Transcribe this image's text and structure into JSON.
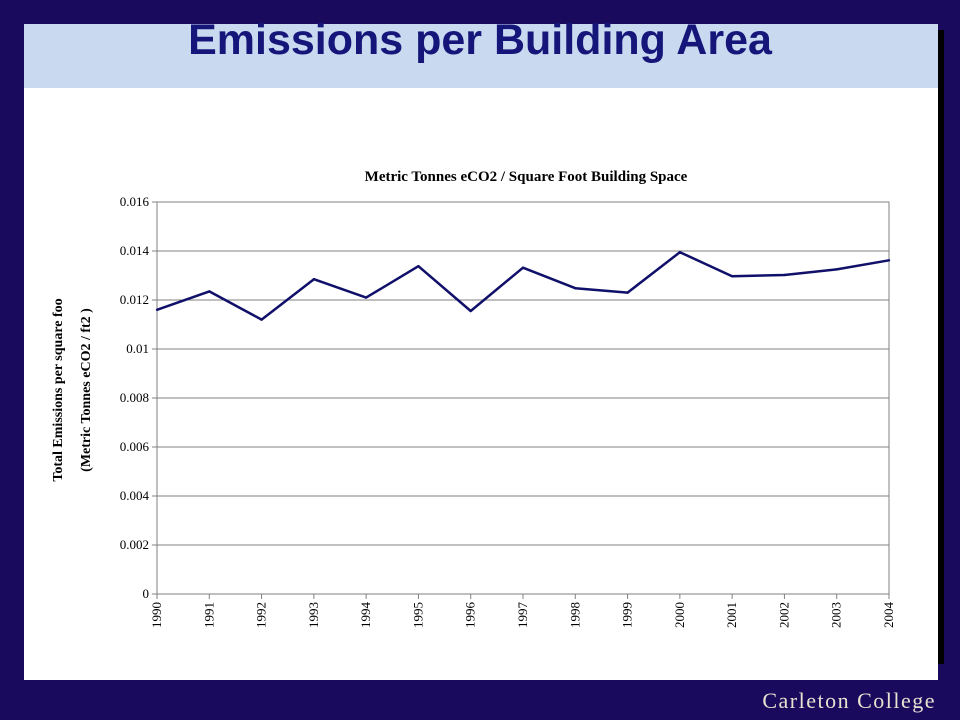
{
  "slide": {
    "title": "Emissions per Building Area",
    "footer": "Carleton College"
  },
  "colors": {
    "background": "#1a0a5e",
    "title_band": "#c9d9f0",
    "title_text": "#16167a",
    "line": "#10106a"
  },
  "chart_data": {
    "type": "line",
    "title": "Metric Tonnes eCO2 / Square Foot Building Space",
    "ylabel_lines": [
      "Total Emissions per square foo",
      "(Metric Tonnes eCO2 / ft2 )"
    ],
    "xlabel": "",
    "ylim": [
      0,
      0.016
    ],
    "yticks": [
      "0",
      "0.002",
      "0.004",
      "0.006",
      "0.008",
      "0.01",
      "0.012",
      "0.014",
      "0.016"
    ],
    "ytick_values": [
      0,
      0.002,
      0.004,
      0.006,
      0.008,
      0.01,
      0.012,
      0.014,
      0.016
    ],
    "grid": true,
    "legend": "none",
    "categories": [
      "1990",
      "1991",
      "1992",
      "1993",
      "1994",
      "1995",
      "1996",
      "1997",
      "1998",
      "1999",
      "2000",
      "2001",
      "2002",
      "2003",
      "2004"
    ],
    "series": [
      {
        "values": [
          0.0116,
          0.01235,
          0.0112,
          0.01285,
          0.0121,
          0.01338,
          0.01155,
          0.01332,
          0.01248,
          0.0123,
          0.01395,
          0.01297,
          0.01302,
          0.01325,
          0.01362
        ]
      }
    ]
  }
}
